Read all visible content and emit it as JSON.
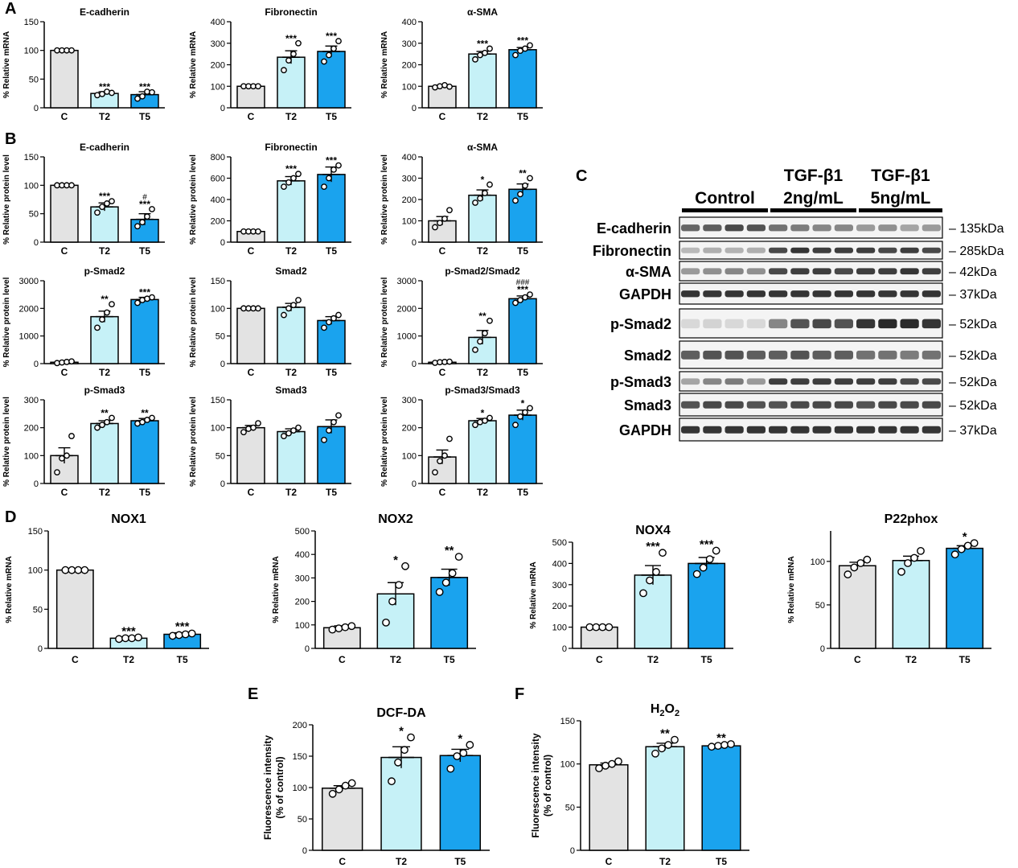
{
  "panels": [
    {
      "letter": "A"
    },
    {
      "letter": "B"
    },
    {
      "letter": "C"
    },
    {
      "letter": "D"
    },
    {
      "letter": "E"
    },
    {
      "letter": "F"
    }
  ],
  "colors": {
    "C": "#e3e3e3",
    "T2": "#c6f1f7",
    "T5": "#1aa3ee",
    "axis": "#000000"
  },
  "chart_data": [
    {
      "id": "A1",
      "type": "bar",
      "title": "E-cadherin",
      "ylabel": "% Relative mRNA",
      "categories": [
        "C",
        "T2",
        "T5"
      ],
      "values": [
        100,
        25,
        23
      ],
      "errors": [
        0.5,
        3,
        5
      ],
      "ylim": [
        0,
        150
      ],
      "yticks": [
        0,
        50,
        100,
        150
      ],
      "stars": [
        "",
        "***",
        "***"
      ],
      "points": [
        [
          100,
          100,
          100,
          100
        ],
        [
          22,
          24,
          28,
          26
        ],
        [
          16,
          20,
          28,
          27
        ]
      ]
    },
    {
      "id": "A2",
      "type": "bar",
      "title": "Fibronectin",
      "ylabel": "% Relative mRNA",
      "categories": [
        "C",
        "T2",
        "T5"
      ],
      "values": [
        100,
        235,
        262
      ],
      "errors": [
        0.5,
        30,
        25
      ],
      "ylim": [
        0,
        400
      ],
      "yticks": [
        0,
        100,
        200,
        300,
        400
      ],
      "stars": [
        "",
        "***",
        "***"
      ],
      "points": [
        [
          100,
          100,
          100,
          100
        ],
        [
          175,
          220,
          250,
          300
        ],
        [
          215,
          245,
          275,
          310
        ]
      ]
    },
    {
      "id": "A3",
      "type": "bar",
      "title": "α-SMA",
      "ylabel": "% Relative mRNA",
      "categories": [
        "C",
        "T2",
        "T5"
      ],
      "values": [
        100,
        250,
        270
      ],
      "errors": [
        5,
        12,
        10
      ],
      "ylim": [
        0,
        400
      ],
      "yticks": [
        0,
        100,
        200,
        300,
        400
      ],
      "stars": [
        "",
        "***",
        "***"
      ],
      "points": [
        [
          95,
          100,
          105,
          98
        ],
        [
          225,
          245,
          255,
          275
        ],
        [
          245,
          265,
          275,
          290
        ]
      ]
    },
    {
      "id": "B1",
      "type": "bar",
      "title": "E-cadherin",
      "ylabel": "% Relative protein level",
      "categories": [
        "C",
        "T2",
        "T5"
      ],
      "values": [
        100,
        62,
        40
      ],
      "errors": [
        0.5,
        7,
        10
      ],
      "ylim": [
        0,
        150
      ],
      "yticks": [
        0,
        50,
        100,
        150
      ],
      "stars": [
        "",
        "***",
        "***"
      ],
      "stars2": [
        "",
        "",
        "#"
      ],
      "points": [
        [
          100,
          100,
          100,
          100
        ],
        [
          52,
          62,
          68,
          72
        ],
        [
          28,
          35,
          45,
          58
        ]
      ]
    },
    {
      "id": "B2",
      "type": "bar",
      "title": "Fibronectin",
      "ylabel": "% Relative protein level",
      "categories": [
        "C",
        "T2",
        "T5"
      ],
      "values": [
        100,
        575,
        635
      ],
      "errors": [
        0.5,
        40,
        70
      ],
      "ylim": [
        0,
        800
      ],
      "yticks": [
        0,
        200,
        400,
        600,
        800
      ],
      "stars": [
        "",
        "***",
        "***"
      ],
      "points": [
        [
          100,
          100,
          100,
          100
        ],
        [
          520,
          560,
          600,
          640
        ],
        [
          520,
          600,
          680,
          720
        ]
      ]
    },
    {
      "id": "B3",
      "type": "bar",
      "title": "α-SMA",
      "ylabel": "% Relative protein level",
      "categories": [
        "C",
        "T2",
        "T5"
      ],
      "values": [
        100,
        220,
        248
      ],
      "errors": [
        20,
        25,
        25
      ],
      "ylim": [
        0,
        400
      ],
      "yticks": [
        0,
        100,
        200,
        300,
        400
      ],
      "stars": [
        "",
        "*",
        "**"
      ],
      "points": [
        [
          70,
          90,
          110,
          150
        ],
        [
          185,
          205,
          230,
          270
        ],
        [
          195,
          225,
          265,
          300
        ]
      ]
    },
    {
      "id": "B4",
      "type": "bar",
      "title": "p-Smad2",
      "ylabel": "% Relative protein level",
      "categories": [
        "C",
        "T2",
        "T5"
      ],
      "values": [
        50,
        1700,
        2320
      ],
      "errors": [
        30,
        200,
        80
      ],
      "ylim": [
        0,
        3000
      ],
      "yticks": [
        0,
        1000,
        2000,
        3000
      ],
      "stars": [
        "",
        "**",
        "***"
      ],
      "points": [
        [
          20,
          40,
          60,
          80
        ],
        [
          1300,
          1600,
          1850,
          2150
        ],
        [
          2200,
          2300,
          2350,
          2400
        ]
      ]
    },
    {
      "id": "B5",
      "type": "bar",
      "title": "Smad2",
      "ylabel": "% Relative protein level",
      "categories": [
        "C",
        "T2",
        "T5"
      ],
      "values": [
        100,
        102,
        78
      ],
      "errors": [
        0.5,
        7,
        7
      ],
      "ylim": [
        0,
        150
      ],
      "yticks": [
        0,
        50,
        100,
        150
      ],
      "stars": [
        "",
        "",
        ""
      ],
      "points": [
        [
          100,
          100,
          100,
          100
        ],
        [
          88,
          100,
          106,
          115
        ],
        [
          65,
          75,
          82,
          88
        ]
      ]
    },
    {
      "id": "B6",
      "type": "bar",
      "title": "p-Smad2/Smad2",
      "ylabel": "% Relative protein level",
      "categories": [
        "C",
        "T2",
        "T5"
      ],
      "values": [
        50,
        950,
        2350
      ],
      "errors": [
        25,
        250,
        100
      ],
      "ylim": [
        0,
        3000
      ],
      "yticks": [
        0,
        1000,
        2000,
        3000
      ],
      "stars": [
        "",
        "**",
        "***"
      ],
      "stars2": [
        "",
        "",
        "###"
      ],
      "points": [
        [
          30,
          50,
          60,
          70
        ],
        [
          500,
          800,
          1100,
          1550
        ],
        [
          2200,
          2300,
          2400,
          2500
        ]
      ]
    },
    {
      "id": "B7",
      "type": "bar",
      "title": "p-Smad3",
      "ylabel": "% Relative protein level",
      "categories": [
        "C",
        "T2",
        "T5"
      ],
      "values": [
        100,
        215,
        225
      ],
      "errors": [
        28,
        10,
        8
      ],
      "ylim": [
        0,
        300
      ],
      "yticks": [
        0,
        100,
        200,
        300
      ],
      "stars": [
        "",
        "**",
        "**"
      ],
      "points": [
        [
          40,
          90,
          100,
          170
        ],
        [
          200,
          210,
          220,
          235
        ],
        [
          215,
          220,
          228,
          235
        ]
      ]
    },
    {
      "id": "B8",
      "type": "bar",
      "title": "Smad3",
      "ylabel": "% Relative protein level",
      "categories": [
        "C",
        "T2",
        "T5"
      ],
      "values": [
        100,
        93,
        102
      ],
      "errors": [
        4,
        5,
        12
      ],
      "ylim": [
        0,
        150
      ],
      "yticks": [
        0,
        50,
        100,
        150
      ],
      "stars": [
        "",
        "",
        ""
      ],
      "points": [
        [
          92,
          98,
          100,
          108
        ],
        [
          85,
          90,
          95,
          100
        ],
        [
          78,
          95,
          110,
          122
        ]
      ]
    },
    {
      "id": "B9",
      "type": "bar",
      "title": "p-Smad3/Smad3",
      "ylabel": "% Relative protein level",
      "categories": [
        "C",
        "T2",
        "T5"
      ],
      "values": [
        95,
        225,
        245
      ],
      "errors": [
        25,
        8,
        18
      ],
      "ylim": [
        0,
        300
      ],
      "yticks": [
        0,
        100,
        200,
        300
      ],
      "stars": [
        "",
        "*",
        "*"
      ],
      "points": [
        [
          40,
          80,
          100,
          160
        ],
        [
          210,
          220,
          225,
          235
        ],
        [
          210,
          240,
          255,
          270
        ]
      ]
    },
    {
      "id": "D1",
      "type": "bar",
      "title": "NOX1",
      "ylabel": "% Relative mRNA",
      "categories": [
        "C",
        "T2",
        "T5"
      ],
      "values": [
        100,
        13,
        18
      ],
      "errors": [
        0.5,
        1,
        2
      ],
      "ylim": [
        0,
        150
      ],
      "yticks": [
        0,
        50,
        100,
        150
      ],
      "stars": [
        "",
        "***",
        "***"
      ],
      "points": [
        [
          100,
          100,
          100,
          100
        ],
        [
          12,
          13,
          13,
          14
        ],
        [
          16,
          17,
          18,
          19
        ]
      ]
    },
    {
      "id": "D2",
      "type": "bar",
      "title": "NOX2",
      "ylabel": "% Relative mRNA",
      "categories": [
        "C",
        "T2",
        "T5"
      ],
      "values": [
        88,
        232,
        302
      ],
      "errors": [
        8,
        48,
        35
      ],
      "ylim": [
        0,
        500
      ],
      "yticks": [
        0,
        100,
        200,
        300,
        400,
        500
      ],
      "stars": [
        "",
        "*",
        "**"
      ],
      "points": [
        [
          80,
          85,
          90,
          95
        ],
        [
          110,
          200,
          270,
          350
        ],
        [
          240,
          280,
          320,
          390
        ]
      ]
    },
    {
      "id": "D3",
      "type": "bar",
      "title": "NOX4",
      "ylabel": "% Relative mRNA",
      "categories": [
        "C",
        "T2",
        "T5"
      ],
      "values": [
        100,
        345,
        400
      ],
      "errors": [
        0.5,
        45,
        28
      ],
      "ylim": [
        0,
        500
      ],
      "yticks": [
        0,
        100,
        200,
        300,
        400,
        500
      ],
      "stars": [
        "",
        "***",
        "***"
      ],
      "points": [
        [
          100,
          100,
          100,
          100
        ],
        [
          260,
          320,
          360,
          450
        ],
        [
          350,
          380,
          420,
          460
        ]
      ]
    },
    {
      "id": "D4",
      "type": "bar",
      "title": "P22phox",
      "ylabel": "% Relative mRNA",
      "categories": [
        "C",
        "T2",
        "T5"
      ],
      "values": [
        95,
        101,
        115
      ],
      "errors": [
        4,
        5,
        3
      ],
      "ylim": [
        0,
        135
      ],
      "yticks": [
        0,
        50,
        100
      ],
      "stars": [
        "",
        "",
        "*"
      ],
      "points": [
        [
          85,
          93,
          98,
          102
        ],
        [
          88,
          98,
          104,
          112
        ],
        [
          108,
          114,
          118,
          121
        ]
      ]
    },
    {
      "id": "E",
      "type": "bar",
      "title": "DCF-DA",
      "ylabel": "Fluorescence intensity",
      "ylabel2": "(% of control)",
      "categories": [
        "C",
        "T2",
        "T5"
      ],
      "values": [
        99,
        148,
        151
      ],
      "errors": [
        4,
        17,
        10
      ],
      "ylim": [
        0,
        200
      ],
      "yticks": [
        0,
        50,
        100,
        150,
        200
      ],
      "stars": [
        "",
        "*",
        "*"
      ],
      "points": [
        [
          90,
          97,
          103,
          107
        ],
        [
          110,
          140,
          160,
          180
        ],
        [
          130,
          150,
          155,
          168
        ]
      ]
    },
    {
      "id": "F",
      "type": "bar",
      "title": "H2O2",
      "ylabel": "Fluorescence intensity",
      "ylabel2": "(% of control)",
      "categories": [
        "C",
        "T2",
        "T5"
      ],
      "values": [
        99,
        120,
        121
      ],
      "errors": [
        2,
        4,
        1
      ],
      "ylim": [
        0,
        150
      ],
      "yticks": [
        0,
        50,
        100,
        150
      ],
      "stars": [
        "",
        "**",
        "**"
      ],
      "points": [
        [
          95,
          98,
          100,
          103
        ],
        [
          112,
          118,
          122,
          128
        ],
        [
          120,
          121,
          122,
          123
        ]
      ]
    }
  ],
  "blot": {
    "groups": [
      {
        "line1": "Control",
        "line2": ""
      },
      {
        "line1": "TGF-β1",
        "line2": "2ng/mL"
      },
      {
        "line1": "TGF-β1",
        "line2": "5ng/mL"
      }
    ],
    "rows": [
      {
        "label": "E-cadherin",
        "size": "– 135kDa",
        "int": [
          0.65,
          0.7,
          0.8,
          0.75,
          0.6,
          0.55,
          0.5,
          0.5,
          0.4,
          0.45,
          0.35,
          0.4
        ]
      },
      {
        "label": "Fibronectin",
        "size": "– 285kDa",
        "int": [
          0.25,
          0.3,
          0.28,
          0.3,
          0.8,
          0.9,
          0.85,
          0.85,
          0.85,
          0.8,
          0.85,
          0.8
        ]
      },
      {
        "label": "α-SMA",
        "size": "– 42kDa",
        "int": [
          0.4,
          0.45,
          0.5,
          0.45,
          0.8,
          0.85,
          0.85,
          0.8,
          0.85,
          0.85,
          0.9,
          0.85
        ]
      },
      {
        "label": "GAPDH",
        "size": "– 37kDa",
        "int": [
          0.9,
          0.9,
          0.9,
          0.9,
          0.9,
          0.9,
          0.9,
          0.9,
          0.9,
          0.9,
          0.9,
          0.9
        ]
      },
      {
        "label": "p-Smad2",
        "size": "– 52kDa",
        "int": [
          0.1,
          0.12,
          0.1,
          0.1,
          0.5,
          0.75,
          0.8,
          0.75,
          0.9,
          0.95,
          0.95,
          0.9
        ]
      },
      {
        "label": "Smad2",
        "size": "– 52kDa",
        "int": [
          0.7,
          0.75,
          0.75,
          0.7,
          0.7,
          0.75,
          0.7,
          0.7,
          0.6,
          0.6,
          0.55,
          0.6
        ]
      },
      {
        "label": "p-Smad3",
        "size": "– 52kDa",
        "int": [
          0.35,
          0.5,
          0.55,
          0.4,
          0.85,
          0.85,
          0.85,
          0.85,
          0.85,
          0.85,
          0.8,
          0.8
        ]
      },
      {
        "label": "Smad3",
        "size": "– 52kDa",
        "int": [
          0.75,
          0.8,
          0.8,
          0.75,
          0.75,
          0.8,
          0.8,
          0.8,
          0.75,
          0.8,
          0.8,
          0.8
        ]
      },
      {
        "label": "GAPDH",
        "size": "– 37kDa",
        "int": [
          0.9,
          0.9,
          0.9,
          0.9,
          0.9,
          0.9,
          0.9,
          0.9,
          0.9,
          0.9,
          0.9,
          0.9
        ]
      }
    ]
  }
}
